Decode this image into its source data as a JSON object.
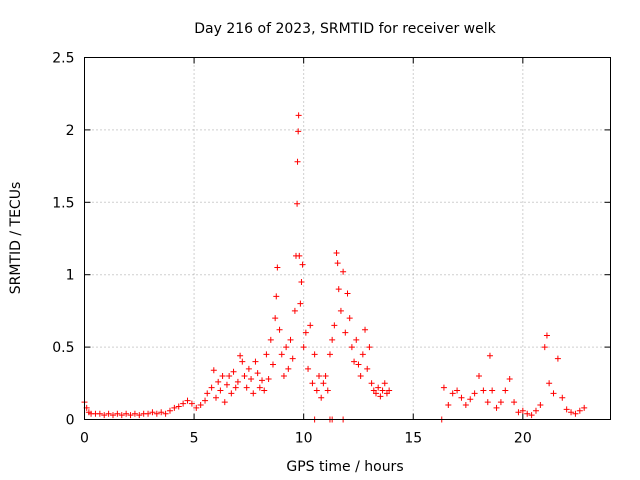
{
  "chart_data": {
    "type": "scatter",
    "title": "Day 216 of 2023, SRMTID for receiver welk",
    "xlabel": "GPS time / hours",
    "ylabel": "SRMTID / TECUs",
    "xlim": [
      0,
      24
    ],
    "ylim": [
      0,
      2.5
    ],
    "x_ticks": [
      0,
      5,
      10,
      15,
      20
    ],
    "x_tick_labels": [
      "0",
      "5",
      "10",
      "15",
      "20"
    ],
    "y_ticks": [
      0,
      0.5,
      1,
      1.5,
      2,
      2.5
    ],
    "y_tick_labels": [
      "0",
      "0.5",
      "1",
      "1.5",
      "2",
      "2.5"
    ],
    "grid": true,
    "marker": "plus",
    "series": [
      {
        "name": "SRMTID",
        "color": "#ff0000",
        "points": [
          [
            0.0,
            0.12
          ],
          [
            0.1,
            0.08
          ],
          [
            0.2,
            0.05
          ],
          [
            0.3,
            0.04
          ],
          [
            0.5,
            0.04
          ],
          [
            0.7,
            0.04
          ],
          [
            0.9,
            0.03
          ],
          [
            1.1,
            0.04
          ],
          [
            1.3,
            0.03
          ],
          [
            1.5,
            0.04
          ],
          [
            1.7,
            0.03
          ],
          [
            1.9,
            0.04
          ],
          [
            2.1,
            0.03
          ],
          [
            2.3,
            0.04
          ],
          [
            2.5,
            0.03
          ],
          [
            2.7,
            0.04
          ],
          [
            2.9,
            0.04
          ],
          [
            3.1,
            0.05
          ],
          [
            3.3,
            0.04
          ],
          [
            3.5,
            0.05
          ],
          [
            3.7,
            0.04
          ],
          [
            3.9,
            0.06
          ],
          [
            4.1,
            0.08
          ],
          [
            4.3,
            0.09
          ],
          [
            4.5,
            0.11
          ],
          [
            4.7,
            0.13
          ],
          [
            4.9,
            0.11
          ],
          [
            5.1,
            0.08
          ],
          [
            5.3,
            0.1
          ],
          [
            5.5,
            0.13
          ],
          [
            5.6,
            0.18
          ],
          [
            5.8,
            0.22
          ],
          [
            5.9,
            0.34
          ],
          [
            6.0,
            0.15
          ],
          [
            6.1,
            0.26
          ],
          [
            6.2,
            0.2
          ],
          [
            6.3,
            0.3
          ],
          [
            6.4,
            0.12
          ],
          [
            6.5,
            0.24
          ],
          [
            6.6,
            0.3
          ],
          [
            6.7,
            0.18
          ],
          [
            6.8,
            0.33
          ],
          [
            6.9,
            0.22
          ],
          [
            7.0,
            0.26
          ],
          [
            7.1,
            0.44
          ],
          [
            7.2,
            0.4
          ],
          [
            7.3,
            0.3
          ],
          [
            7.4,
            0.22
          ],
          [
            7.5,
            0.35
          ],
          [
            7.6,
            0.28
          ],
          [
            7.7,
            0.18
          ],
          [
            7.8,
            0.4
          ],
          [
            7.9,
            0.32
          ],
          [
            8.0,
            0.22
          ],
          [
            8.1,
            0.27
          ],
          [
            8.2,
            0.2
          ],
          [
            8.3,
            0.45
          ],
          [
            8.4,
            0.28
          ],
          [
            8.5,
            0.55
          ],
          [
            8.6,
            0.38
          ],
          [
            8.7,
            0.7
          ],
          [
            8.75,
            0.85
          ],
          [
            8.8,
            1.05
          ],
          [
            8.9,
            0.62
          ],
          [
            9.0,
            0.45
          ],
          [
            9.1,
            0.3
          ],
          [
            9.2,
            0.5
          ],
          [
            9.3,
            0.35
          ],
          [
            9.4,
            0.55
          ],
          [
            9.5,
            0.42
          ],
          [
            9.6,
            0.75
          ],
          [
            9.65,
            1.13
          ],
          [
            9.7,
            1.49
          ],
          [
            9.72,
            1.78
          ],
          [
            9.75,
            1.99
          ],
          [
            9.77,
            2.1
          ],
          [
            9.8,
            1.13
          ],
          [
            9.85,
            0.8
          ],
          [
            9.9,
            0.95
          ],
          [
            9.95,
            1.07
          ],
          [
            10.0,
            0.5
          ],
          [
            10.1,
            0.6
          ],
          [
            10.2,
            0.35
          ],
          [
            10.3,
            0.65
          ],
          [
            10.4,
            0.25
          ],
          [
            10.5,
            0.45
          ],
          [
            10.6,
            0.2
          ],
          [
            10.7,
            0.3
          ],
          [
            10.8,
            0.15
          ],
          [
            10.9,
            0.25
          ],
          [
            11.0,
            0.3
          ],
          [
            11.1,
            0.2
          ],
          [
            11.2,
            0.45
          ],
          [
            11.3,
            0.55
          ],
          [
            11.4,
            0.65
          ],
          [
            11.5,
            1.15
          ],
          [
            11.55,
            1.08
          ],
          [
            11.6,
            0.9
          ],
          [
            11.7,
            0.75
          ],
          [
            11.8,
            1.02
          ],
          [
            11.9,
            0.6
          ],
          [
            12.0,
            0.87
          ],
          [
            12.1,
            0.7
          ],
          [
            12.2,
            0.5
          ],
          [
            12.3,
            0.4
          ],
          [
            12.4,
            0.55
          ],
          [
            12.5,
            0.38
          ],
          [
            12.6,
            0.3
          ],
          [
            12.7,
            0.45
          ],
          [
            12.8,
            0.62
          ],
          [
            12.9,
            0.35
          ],
          [
            13.0,
            0.5
          ],
          [
            13.1,
            0.25
          ],
          [
            13.2,
            0.2
          ],
          [
            13.3,
            0.18
          ],
          [
            13.4,
            0.22
          ],
          [
            13.5,
            0.16
          ],
          [
            13.6,
            0.2
          ],
          [
            13.7,
            0.25
          ],
          [
            13.8,
            0.18
          ],
          [
            13.9,
            0.2
          ],
          [
            10.5,
            0.0
          ],
          [
            11.2,
            0.0
          ],
          [
            11.3,
            0.0
          ],
          [
            11.8,
            0.0
          ],
          [
            16.3,
            0.0
          ],
          [
            16.4,
            0.22
          ],
          [
            16.6,
            0.1
          ],
          [
            16.8,
            0.18
          ],
          [
            17.0,
            0.2
          ],
          [
            17.2,
            0.15
          ],
          [
            17.4,
            0.1
          ],
          [
            17.6,
            0.14
          ],
          [
            17.8,
            0.18
          ],
          [
            18.0,
            0.3
          ],
          [
            18.2,
            0.2
          ],
          [
            18.4,
            0.12
          ],
          [
            18.5,
            0.44
          ],
          [
            18.6,
            0.2
          ],
          [
            18.8,
            0.08
          ],
          [
            19.0,
            0.12
          ],
          [
            19.2,
            0.2
          ],
          [
            19.4,
            0.28
          ],
          [
            19.6,
            0.12
          ],
          [
            19.8,
            0.05
          ],
          [
            20.0,
            0.06
          ],
          [
            20.2,
            0.04
          ],
          [
            20.4,
            0.03
          ],
          [
            20.6,
            0.06
          ],
          [
            20.8,
            0.1
          ],
          [
            21.0,
            0.5
          ],
          [
            21.1,
            0.58
          ],
          [
            21.2,
            0.25
          ],
          [
            21.4,
            0.18
          ],
          [
            21.6,
            0.42
          ],
          [
            21.8,
            0.15
          ],
          [
            22.0,
            0.07
          ],
          [
            22.2,
            0.05
          ],
          [
            22.4,
            0.04
          ],
          [
            22.6,
            0.06
          ],
          [
            22.8,
            0.08
          ]
        ]
      }
    ]
  }
}
